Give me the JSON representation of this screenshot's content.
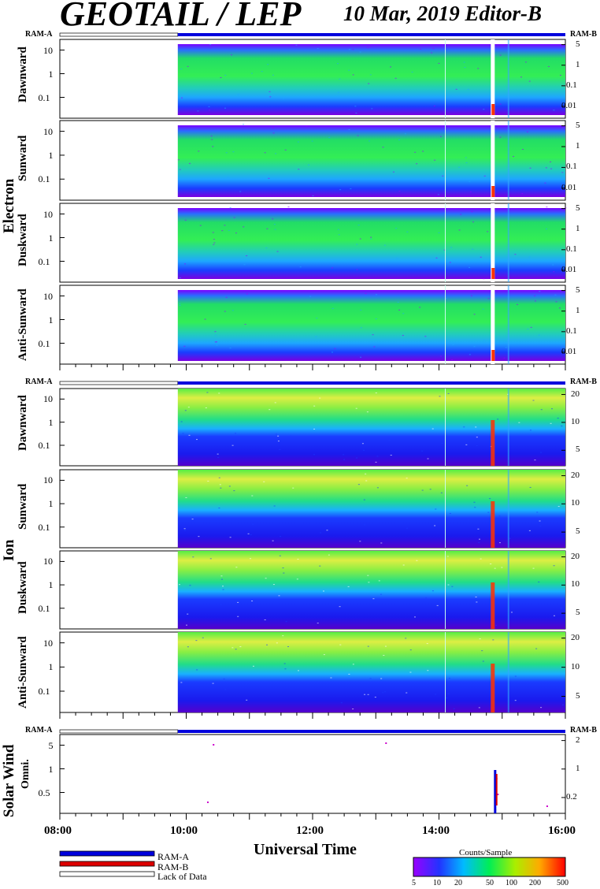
{
  "header": {
    "title": "GEOTAIL / LEP",
    "date_editor": "10 Mar, 2019   Editor-B"
  },
  "group_labels": {
    "electron": "Electron",
    "ion": "Ion",
    "solar_wind": "Solar Wind"
  },
  "ram_labels": {
    "left": "RAM-A",
    "right": "RAM-B"
  },
  "x_axis": {
    "label": "Universal Time",
    "ticks": [
      "08:00",
      "10:00",
      "12:00",
      "14:00",
      "16:00"
    ]
  },
  "legend": {
    "items": [
      {
        "label": "RAM-A",
        "color": "#0000dd"
      },
      {
        "label": "RAM-B",
        "color": "#dd0000"
      },
      {
        "label": "Lack of Data",
        "color": "#ffffff"
      }
    ]
  },
  "colorbar": {
    "title": "Counts/Sample",
    "ticks": [
      "5",
      "10",
      "20",
      "50",
      "100",
      "200",
      "500"
    ]
  },
  "colors": {
    "ram_a": "#0000dd",
    "ram_b": "#dd0000"
  },
  "chart_data": [
    {
      "type": "heatmap",
      "group": "Electron",
      "ylabel": "Dawnward",
      "left_ticks": [
        "10",
        "1",
        "0.1"
      ],
      "right_ticks": [
        "5",
        "1",
        "0.1",
        "0.01"
      ],
      "x_range": [
        "08:00",
        "16:00"
      ],
      "data_start": "09:52"
    },
    {
      "type": "heatmap",
      "group": "Electron",
      "ylabel": "Sunward",
      "left_ticks": [
        "10",
        "1",
        "0.1"
      ],
      "right_ticks": [
        "5",
        "1",
        "0.1",
        "0.01"
      ],
      "x_range": [
        "08:00",
        "16:00"
      ],
      "data_start": "09:52"
    },
    {
      "type": "heatmap",
      "group": "Electron",
      "ylabel": "Duskward",
      "left_ticks": [
        "10",
        "1",
        "0.1"
      ],
      "right_ticks": [
        "5",
        "1",
        "0.1",
        "0.01"
      ],
      "x_range": [
        "08:00",
        "16:00"
      ],
      "data_start": "09:52"
    },
    {
      "type": "heatmap",
      "group": "Electron",
      "ylabel": "Anti-Sunward",
      "left_ticks": [
        "10",
        "1",
        "0.1"
      ],
      "right_ticks": [
        "5",
        "1",
        "0.1",
        "0.01"
      ],
      "x_range": [
        "08:00",
        "16:00"
      ],
      "data_start": "09:52"
    },
    {
      "type": "heatmap",
      "group": "Ion",
      "ylabel": "Dawnward",
      "left_ticks": [
        "10",
        "1",
        "0.1"
      ],
      "right_ticks": [
        "20",
        "10",
        "5"
      ],
      "x_range": [
        "08:00",
        "16:00"
      ],
      "data_start": "09:52"
    },
    {
      "type": "heatmap",
      "group": "Ion",
      "ylabel": "Sunward",
      "left_ticks": [
        "10",
        "1",
        "0.1"
      ],
      "right_ticks": [
        "20",
        "10",
        "5"
      ],
      "x_range": [
        "08:00",
        "16:00"
      ],
      "data_start": "09:52"
    },
    {
      "type": "heatmap",
      "group": "Ion",
      "ylabel": "Duskward",
      "left_ticks": [
        "10",
        "1",
        "0.1"
      ],
      "right_ticks": [
        "20",
        "10",
        "5"
      ],
      "x_range": [
        "08:00",
        "16:00"
      ],
      "data_start": "09:52"
    },
    {
      "type": "heatmap",
      "group": "Ion",
      "ylabel": "Anti-Sunward",
      "left_ticks": [
        "10",
        "1",
        "0.1"
      ],
      "right_ticks": [
        "20",
        "10",
        "5"
      ],
      "x_range": [
        "08:00",
        "16:00"
      ],
      "data_start": "09:52"
    },
    {
      "type": "scatter",
      "group": "Solar Wind",
      "ylabel": "Omni.",
      "left_ticks": [
        "5",
        "1",
        "0.5"
      ],
      "right_ticks": [
        "2",
        "1",
        "0.2"
      ],
      "x_range": [
        "08:00",
        "16:00"
      ],
      "data_start": "09:52"
    }
  ]
}
